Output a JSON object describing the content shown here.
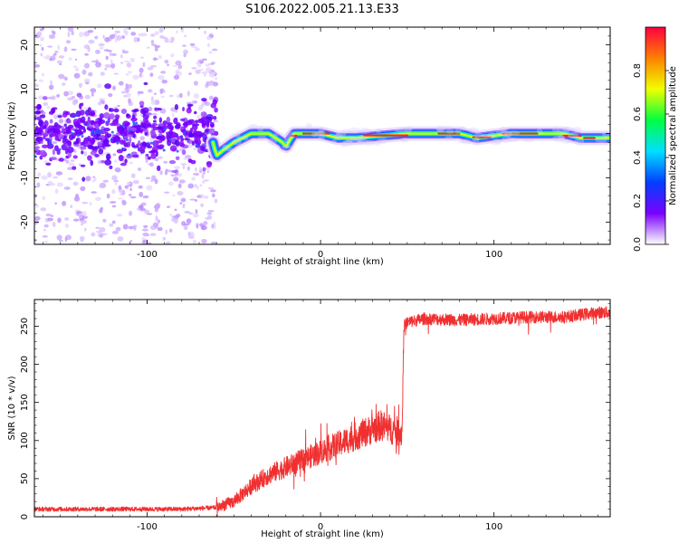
{
  "title": "S106.2022.005.21.13.E33",
  "chart_data": [
    {
      "type": "heatmap",
      "xlabel": "Height of straight line (km)",
      "ylabel": "Frequency (Hz)",
      "xlim": [
        -165,
        167
      ],
      "ylim": [
        -25,
        24
      ],
      "xticks": [
        -100,
        0,
        100
      ],
      "yticks": [
        -20,
        -10,
        0,
        10,
        20
      ],
      "colorbar": {
        "label": "Normalized spectral amplitude",
        "range": [
          0,
          1
        ],
        "ticks": [
          0.0,
          0.2,
          0.4,
          0.6,
          0.8
        ],
        "colors": [
          "#ffffff",
          "#7a00ff",
          "#0040ff",
          "#00e0ff",
          "#00ff40",
          "#f0ff00",
          "#ff8000",
          "#ff0040"
        ]
      },
      "tone_track": {
        "x": [
          -165,
          -120,
          -80,
          -62,
          -60,
          -57,
          -50,
          -40,
          -30,
          -22,
          -20,
          -17,
          -15,
          0,
          10,
          20,
          50,
          80,
          90,
          110,
          140,
          150,
          160,
          167
        ],
        "y": [
          0,
          0,
          0,
          -2,
          -5,
          -4,
          -2,
          0,
          0,
          -2,
          -3,
          -1,
          0,
          0,
          -1,
          -1,
          0,
          0,
          -1,
          0,
          0,
          -1,
          -1,
          -1
        ]
      },
      "noise_region_x": [
        -165,
        -60
      ],
      "grid": false
    },
    {
      "type": "line",
      "xlabel": "Height of straight line (km)",
      "ylabel": "SNR (10 * v/v)",
      "xlim": [
        -165,
        167
      ],
      "ylim": [
        0,
        285
      ],
      "xticks": [
        -100,
        0,
        100
      ],
      "yticks": [
        0,
        50,
        100,
        150,
        200,
        250
      ],
      "color": "#f03030",
      "grid": false,
      "series": [
        {
          "x": [
            -165,
            -140,
            -120,
            -100,
            -80,
            -60,
            -50,
            -45,
            -40,
            -30,
            -20,
            -10,
            -5,
            0,
            10,
            20,
            30,
            35,
            40,
            47,
            48,
            50,
            60,
            80,
            100,
            120,
            140,
            160,
            167
          ],
          "values": [
            10,
            10,
            10,
            10,
            10,
            12,
            20,
            30,
            40,
            55,
            65,
            75,
            80,
            85,
            95,
            105,
            115,
            120,
            115,
            110,
            250,
            255,
            260,
            258,
            260,
            262,
            262,
            268,
            268
          ]
        }
      ]
    }
  ]
}
